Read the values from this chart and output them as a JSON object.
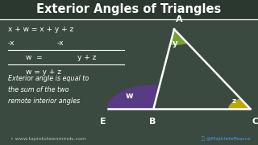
{
  "title": "Exterior Angles of Triangles",
  "bg_color": "#3a4a40",
  "title_bg_color": "#2a3830",
  "footer_bg": "#1a1a1a",
  "title_color": "#ffffff",
  "text_color": "#ffffff",
  "footer_text_left": "www.tapintoteenminds.com",
  "footer_text_right": "@MathletePearce",
  "angle_colors": {
    "w": "#5b3a8c",
    "y": "#7aaa2e",
    "z": "#c8b400"
  },
  "tri_A": [
    0.675,
    0.78
  ],
  "tri_B": [
    0.595,
    0.18
  ],
  "tri_C": [
    0.97,
    0.18
  ],
  "tri_E": [
    0.42,
    0.18
  ]
}
